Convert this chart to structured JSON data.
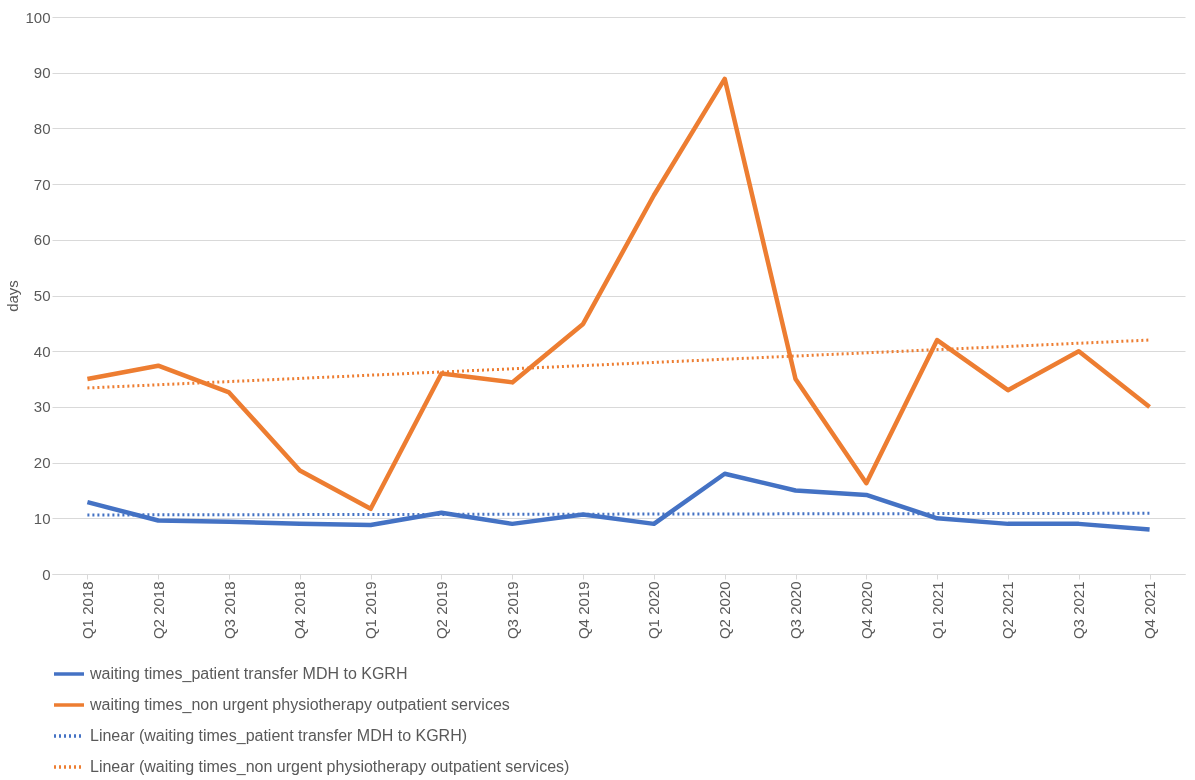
{
  "chart_data": {
    "type": "line",
    "ylabel": "days",
    "categories": [
      "Q1 2018",
      "Q2 2018",
      "Q3 2018",
      "Q4 2018",
      "Q1 2019",
      "Q2 2019",
      "Q3 2019",
      "Q4 2019",
      "Q1 2020",
      "Q2 2020",
      "Q3 2020",
      "Q4 2020",
      "Q1 2021",
      "Q2 2021",
      "Q3 2021",
      "Q4 2021"
    ],
    "series": [
      {
        "name": "waiting times_patient transfer MDH to KGRH",
        "color": "#4472c4",
        "line_style": "solid",
        "values": [
          12.9,
          9.6,
          9.4,
          9.0,
          8.8,
          11.0,
          9.0,
          10.7,
          9.0,
          18.0,
          15.0,
          14.2,
          10.0,
          9.0,
          9.0,
          8.0
        ]
      },
      {
        "name": "waiting times_non urgent physiotherapy outpatient services",
        "color": "#ed7d31",
        "line_style": "solid",
        "values": [
          35.0,
          37.4,
          32.6,
          18.6,
          11.7,
          36.0,
          34.4,
          44.9,
          68.0,
          88.9,
          35.0,
          16.3,
          42.0,
          33.0,
          40.0,
          30.0
        ]
      },
      {
        "name": "Linear (waiting times_patient transfer MDH to KGRH)",
        "type": "line",
        "color": "#4472c4",
        "line_style": "dotted",
        "x": [
          "Q1 2018",
          "Q4 2021"
        ],
        "values": [
          10.6,
          10.9
        ]
      },
      {
        "name": "Linear (waiting times_non urgent physiotherapy outpatient services)",
        "type": "line",
        "color": "#ed7d31",
        "line_style": "dotted",
        "x": [
          "Q1 2018",
          "Q4 2021"
        ],
        "values": [
          33.4,
          42.0
        ]
      }
    ],
    "ylim": [
      0,
      100
    ],
    "yticks": [
      0,
      10,
      20,
      30,
      40,
      50,
      60,
      70,
      80,
      90,
      100
    ],
    "grid": "y",
    "legend": "bottom"
  }
}
